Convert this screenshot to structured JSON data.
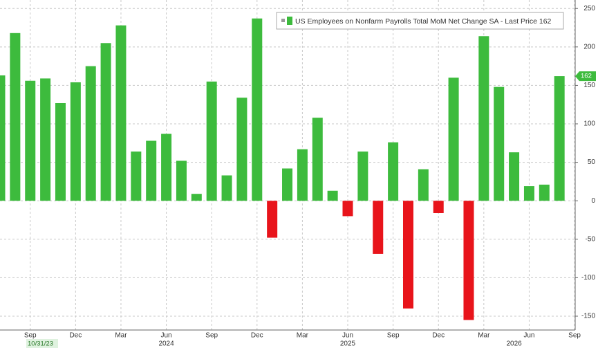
{
  "chart_data": {
    "type": "bar",
    "series": [
      {
        "name": "US Employees on Nonfarm Payrolls Total MoM Net Change SA - Last Price 162",
        "values": [
          163,
          218,
          156,
          159,
          127,
          154,
          175,
          205,
          228,
          64,
          78,
          87,
          52,
          9,
          155,
          33,
          134,
          237,
          -48,
          42,
          67,
          108,
          13,
          -20,
          64,
          -69,
          76,
          -140,
          41,
          -16,
          160,
          -155,
          214,
          148,
          63,
          19,
          21,
          162,
          null
        ]
      }
    ],
    "colors": {
      "positive": "#3dbb3d",
      "negative": "#e8141b"
    },
    "categories": [
      null,
      null,
      "Sep",
      null,
      null,
      "Dec",
      null,
      null,
      "Mar",
      null,
      null,
      "Jun",
      null,
      null,
      "Sep",
      null,
      null,
      "Dec",
      null,
      null,
      "Mar",
      null,
      null,
      "Jun",
      null,
      null,
      "Sep",
      null,
      null,
      "Dec",
      null,
      null,
      "Mar",
      null,
      null,
      "Jun",
      null,
      null,
      "Sep"
    ],
    "year_categories": [
      null,
      null,
      null,
      null,
      null,
      null,
      null,
      null,
      null,
      null,
      null,
      "2024",
      null,
      null,
      null,
      null,
      null,
      null,
      null,
      null,
      null,
      null,
      null,
      "2025",
      null,
      null,
      null,
      null,
      null,
      null,
      null,
      null,
      null,
      null,
      "2026",
      null,
      null,
      null,
      null
    ],
    "start_date": "10/31/23",
    "last_price": 162,
    "ylim": [
      -168,
      261
    ],
    "yticks": [
      -150,
      -100,
      -50,
      0,
      50,
      100,
      150,
      200,
      250
    ],
    "grid": true
  }
}
